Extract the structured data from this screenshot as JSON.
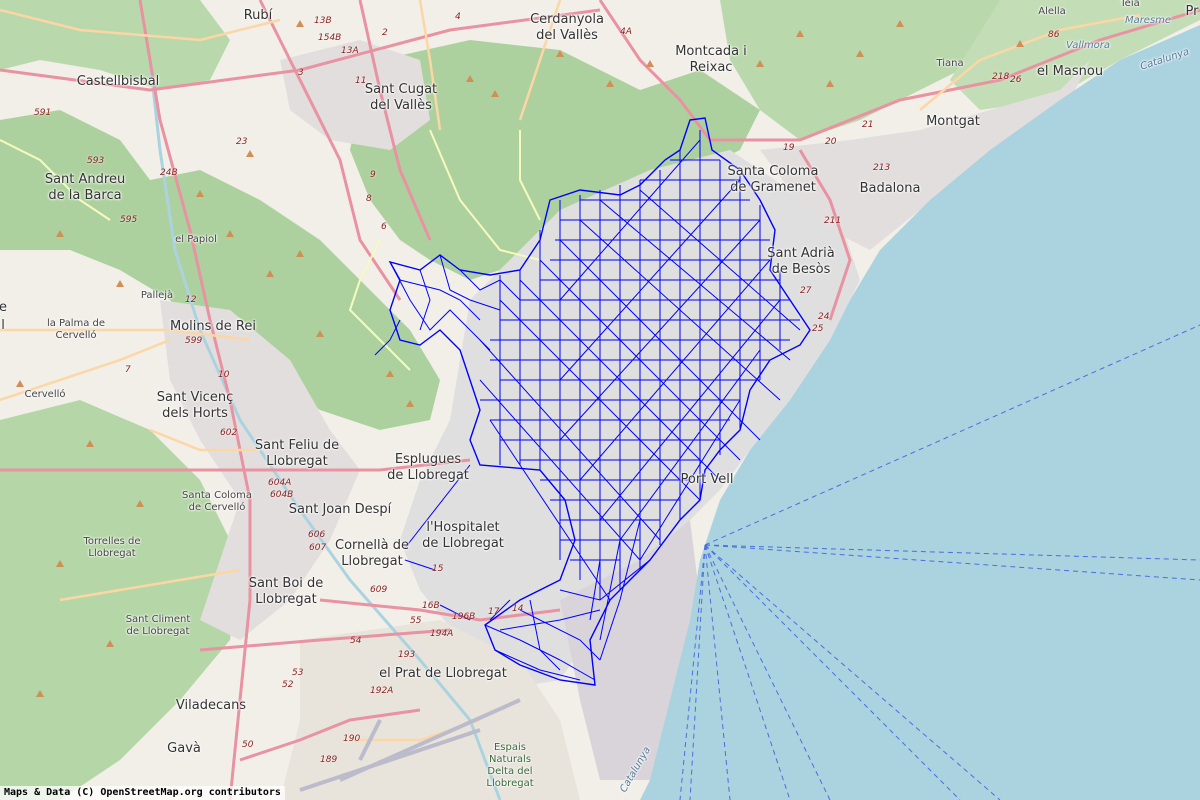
{
  "map": {
    "attribution": "Maps & Data (C) OpenStreetMap.org contributors",
    "colors": {
      "sea": "#aad3df",
      "land": "#f2efe9",
      "forest": "#add19e",
      "urban": "#e0dfdf",
      "overlay": "#0000ff",
      "motorway": "#e892a2",
      "primary": "#fcd6a4"
    },
    "places": [
      {
        "id": "rubi",
        "name": "Rubí"
      },
      {
        "id": "cerdanyola",
        "name": "Cerdanyola\ndel Vallès"
      },
      {
        "id": "montcada",
        "name": "Montcada i\nReixac"
      },
      {
        "id": "alella",
        "name": "Alella"
      },
      {
        "id": "teia",
        "name": "Teià"
      },
      {
        "id": "masnou",
        "name": "el Masnou"
      },
      {
        "id": "tiana",
        "name": "Tiana"
      },
      {
        "id": "montgat",
        "name": "Montgat"
      },
      {
        "id": "castellbisbal",
        "name": "Castellbisbal"
      },
      {
        "id": "santcugat",
        "name": "Sant Cugat\ndel Vallès"
      },
      {
        "id": "santacoloma",
        "name": "Santa Coloma\nde Gramenet"
      },
      {
        "id": "badalona",
        "name": "Badalona"
      },
      {
        "id": "santandreu",
        "name": "Sant Andreu\nde la Barca"
      },
      {
        "id": "papiol",
        "name": "el Papiol"
      },
      {
        "id": "santadria",
        "name": "Sant Adrià\nde Besòs"
      },
      {
        "id": "palleja",
        "name": "Pallejà"
      },
      {
        "id": "molins",
        "name": "Molins de Rei"
      },
      {
        "id": "palma",
        "name": "la Palma de\nCervelló"
      },
      {
        "id": "cervello",
        "name": "Cervelló"
      },
      {
        "id": "santvicenc",
        "name": "Sant Vicenç\ndels Horts"
      },
      {
        "id": "santfeliu",
        "name": "Sant Feliu de\nLlobregat"
      },
      {
        "id": "esplugues",
        "name": "Esplugues\nde Llobregat"
      },
      {
        "id": "santacolomacervello",
        "name": "Santa Coloma\nde Cervelló"
      },
      {
        "id": "santjoan",
        "name": "Sant Joan Despí"
      },
      {
        "id": "hospitalet",
        "name": "l'Hospitalet\nde Llobregat"
      },
      {
        "id": "cornella",
        "name": "Cornellà de\nLlobregat"
      },
      {
        "id": "torrelles",
        "name": "Torrelles de\nLlobregat"
      },
      {
        "id": "santboi",
        "name": "Sant Boi de\nLlobregat"
      },
      {
        "id": "santcliment",
        "name": "Sant Climent\nde Llobregat"
      },
      {
        "id": "prat",
        "name": "el Prat de Llobregat"
      },
      {
        "id": "viladecans",
        "name": "Viladecans"
      },
      {
        "id": "gava",
        "name": "Gavà"
      },
      {
        "id": "delta",
        "name": "Espais\nNaturals\nDelta del\nLlobregat"
      },
      {
        "id": "port",
        "name": "Port Vell"
      },
      {
        "id": "pr",
        "name": "Pr"
      },
      {
        "id": "edge_e",
        "name": "e"
      },
      {
        "id": "edge_l",
        "name": "l"
      }
    ],
    "water_labels": {
      "maresme": "Maresme",
      "vallmora": "Vallmora",
      "catalunya_n": "Catalunya",
      "catalunya_s": "Catalunya"
    },
    "road_numbers": [
      "13B",
      "154B",
      "13A",
      "2",
      "4",
      "4A",
      "591",
      "593",
      "24B",
      "595",
      "23",
      "21",
      "19",
      "20",
      "218",
      "26",
      "86",
      "10",
      "12",
      "599",
      "7",
      "602",
      "604A",
      "604B",
      "606",
      "607",
      "609",
      "16B",
      "196B",
      "194A",
      "193",
      "192A",
      "190",
      "189",
      "54",
      "55",
      "53",
      "52",
      "50",
      "211",
      "213",
      "27",
      "24",
      "25",
      "11",
      "9",
      "8",
      "3",
      "6",
      "15",
      "17",
      "14"
    ]
  }
}
